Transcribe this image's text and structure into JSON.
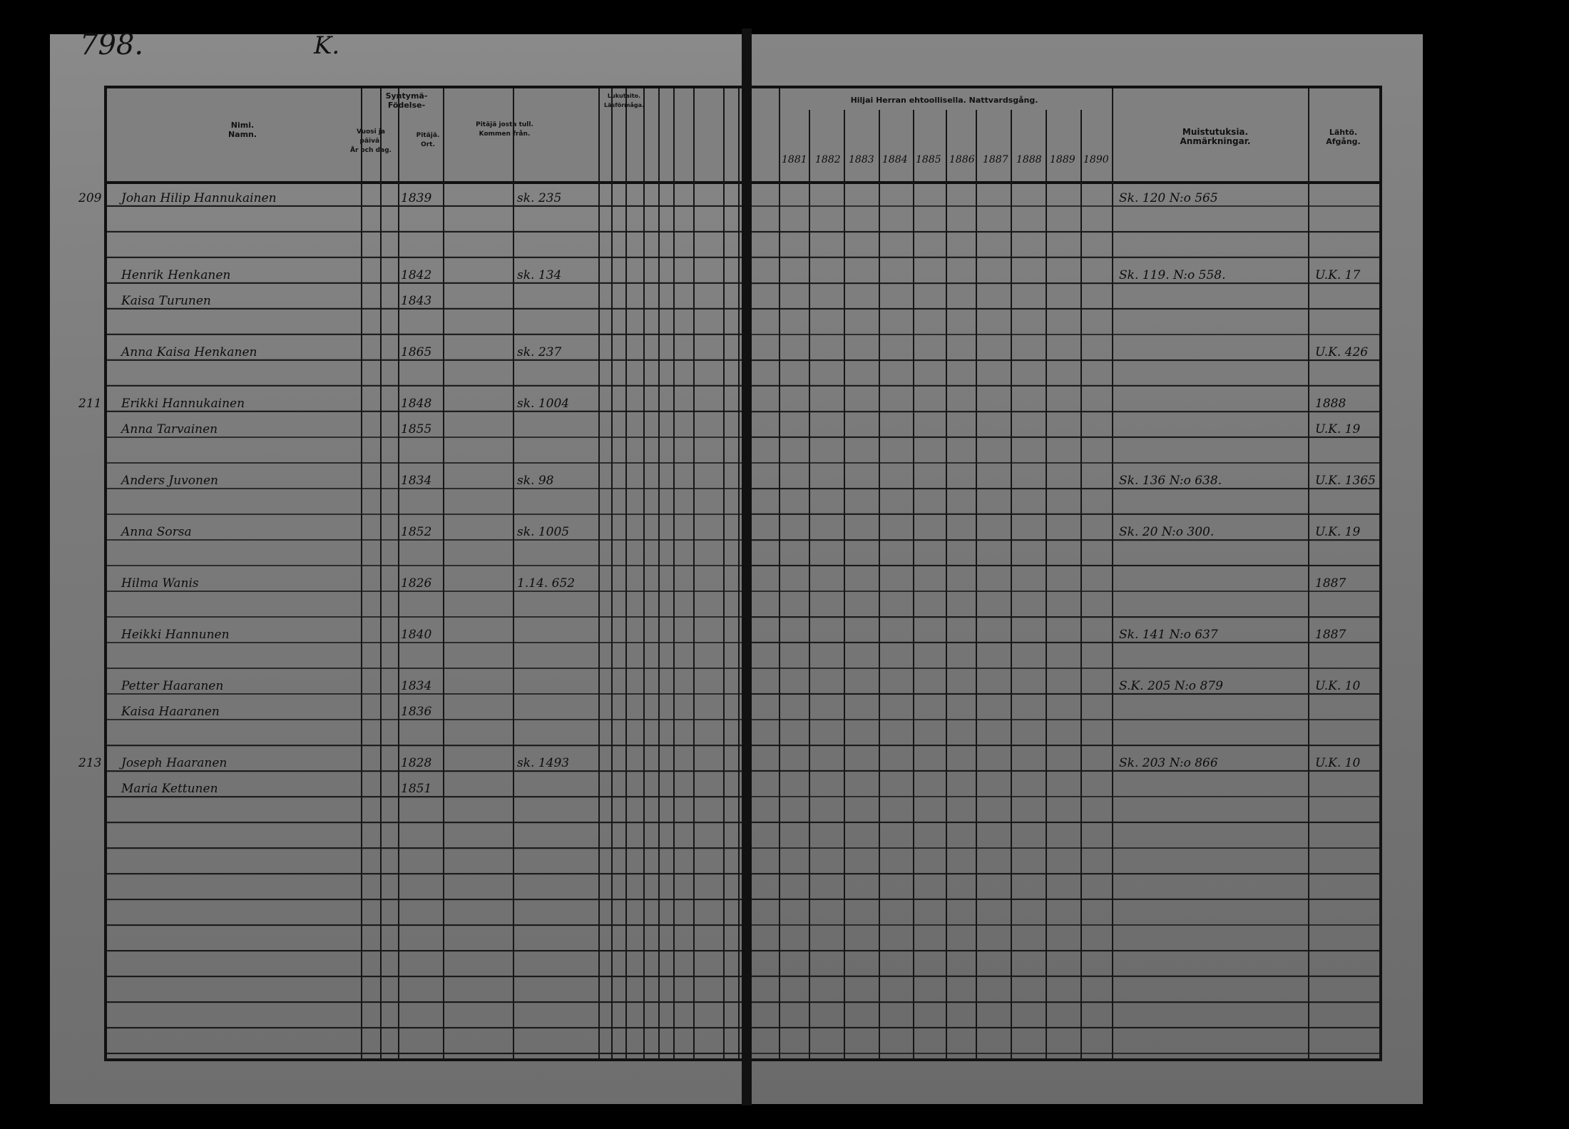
{
  "page_number": "798.",
  "page_mark": "K.",
  "left_headers": {
    "name": "Nimi.",
    "name_sv": "Namn.",
    "birth": "Syntymä-",
    "birth_sv": "Födelse-",
    "date": "Vuosi ja päivä.",
    "date_sv": "År och dag.",
    "parish": "Pitäjä.",
    "parish_sv": "Ort.",
    "came_from": "Pitäjä josta tull.",
    "came_from_sv": "Kommen från.",
    "reading": "Lukutaito.",
    "reading_sv": "Läsförmåga."
  },
  "right_headers": {
    "communion": "Hiljai Herran ehtoollisella. Nattvardsgång.",
    "years": [
      "1881",
      "1882",
      "1883",
      "1884",
      "1885",
      "1886",
      "1887",
      "1888",
      "1889",
      "1890"
    ],
    "remarks": "Muistutuksia.",
    "remarks_sv": "Anmärkningar.",
    "departure": "Lähtö.",
    "departure_sv": "Afgång."
  },
  "entries": [
    {
      "no": "209",
      "name": "Johan Hilip Hannukainen",
      "date": "1839",
      "from": "sk. 235",
      "remarks": "Sk. 120 N:o 565"
    },
    {
      "no": "",
      "name": "Henrik Henkanen",
      "date": "1842",
      "from": "sk. 134",
      "remarks": "Sk. 119. N:o 558.",
      "dep": "U.K. 17"
    },
    {
      "no": "",
      "name": "Kaisa Turunen",
      "date": "1843",
      "from": "",
      "remarks": "",
      "dep": ""
    },
    {
      "no": "",
      "name": "Anna Kaisa Henkanen",
      "date": "1865",
      "from": "sk. 237",
      "remarks": "",
      "dep": "U.K. 426"
    },
    {
      "no": "211",
      "name": "Erikki Hannukainen",
      "date": "1848",
      "from": "sk. 1004",
      "remarks": "",
      "dep": "1888"
    },
    {
      "no": "",
      "name": "Anna Tarvainen",
      "date": "1855",
      "from": "",
      "remarks": "",
      "dep": "U.K. 19"
    },
    {
      "no": "",
      "name": "Anders Juvonen",
      "date": "1834",
      "from": "sk. 98",
      "remarks": "Sk. 136 N:o 638.",
      "dep": "U.K. 1365"
    },
    {
      "no": "",
      "name": "Anna Sorsa",
      "date": "1852",
      "from": "sk. 1005",
      "remarks": "Sk. 20 N:o 300.",
      "dep": "U.K. 19"
    },
    {
      "no": "",
      "name": "Hilma Wanis",
      "date": "1826",
      "from": "1.14. 652",
      "remarks": "",
      "dep": "1887"
    },
    {
      "no": "",
      "name": "Heikki Hannunen",
      "date": "1840",
      "from": "",
      "remarks": "Sk. 141 N:o 637",
      "dep": "1887"
    },
    {
      "no": "",
      "name": "Petter Haaranen",
      "date": "1834",
      "from": "",
      "remarks": "S.K. 205 N:o 879",
      "dep": "U.K. 10"
    },
    {
      "no": "",
      "name": "Kaisa Haaranen",
      "date": "1836",
      "from": "",
      "remarks": "",
      "dep": ""
    },
    {
      "no": "213",
      "name": "Joseph Haaranen",
      "date": "1828",
      "from": "sk. 1493",
      "remarks": "Sk. 203 N:o 866",
      "dep": "U.K. 10"
    },
    {
      "no": "",
      "name": "Maria Kettunen",
      "date": "1851",
      "from": "",
      "remarks": "",
      "dep": ""
    }
  ]
}
